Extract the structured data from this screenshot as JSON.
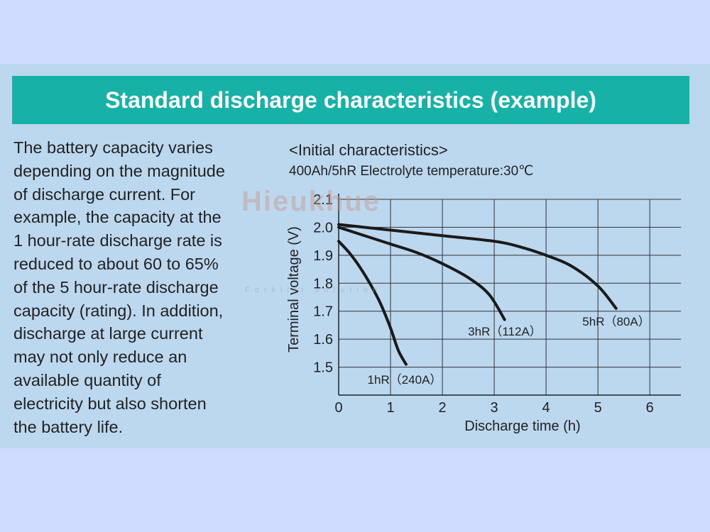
{
  "banner": {
    "title": "Standard discharge characteristics (example)"
  },
  "description": [
    "The battery capacity varies",
    "depending on the magnitude",
    "of discharge current. For",
    "example, the capacity at the",
    "1 hour-rate discharge rate is",
    "reduced to about 60 to 65%",
    "of the 5 hour-rate discharge",
    "capacity (rating). In addition,",
    "discharge at large current",
    "may not only reduce an",
    "available quantity of",
    "electricity but also shorten",
    "the battery life."
  ],
  "watermark": {
    "brand": "Hieukhue",
    "tagline": "Forklift solution"
  },
  "chart_data": {
    "type": "line",
    "subtitle1": "<Initial characteristics>",
    "subtitle2": "400Ah/5hR   Electrolyte temperature:30℃",
    "xlabel": "Discharge time (h)",
    "ylabel": "Terminal voltage (V)",
    "xlim": [
      0,
      6.6
    ],
    "ylim": [
      1.4,
      2.1
    ],
    "xticks": [
      "0",
      "1",
      "2",
      "3",
      "4",
      "5",
      "6"
    ],
    "yticks": [
      "1.5",
      "1.6",
      "1.7",
      "1.8",
      "1.9",
      "2.0",
      "2.1"
    ],
    "grid": true,
    "series": [
      {
        "name": "1hR（240A）",
        "x": [
          0,
          0.2,
          0.4,
          0.6,
          0.8,
          1.0,
          1.15,
          1.3
        ],
        "y": [
          1.95,
          1.91,
          1.86,
          1.8,
          1.73,
          1.64,
          1.56,
          1.51
        ]
      },
      {
        "name": "3hR（112A）",
        "x": [
          0,
          0.5,
          1.0,
          1.5,
          2.0,
          2.5,
          2.9,
          3.2
        ],
        "y": [
          2.0,
          1.97,
          1.94,
          1.91,
          1.87,
          1.82,
          1.76,
          1.67
        ]
      },
      {
        "name": "5hR（80A）",
        "x": [
          0,
          1.0,
          2.0,
          3.0,
          3.5,
          4.0,
          4.5,
          5.0,
          5.35
        ],
        "y": [
          2.01,
          1.99,
          1.97,
          1.95,
          1.93,
          1.9,
          1.86,
          1.79,
          1.71
        ]
      }
    ]
  }
}
